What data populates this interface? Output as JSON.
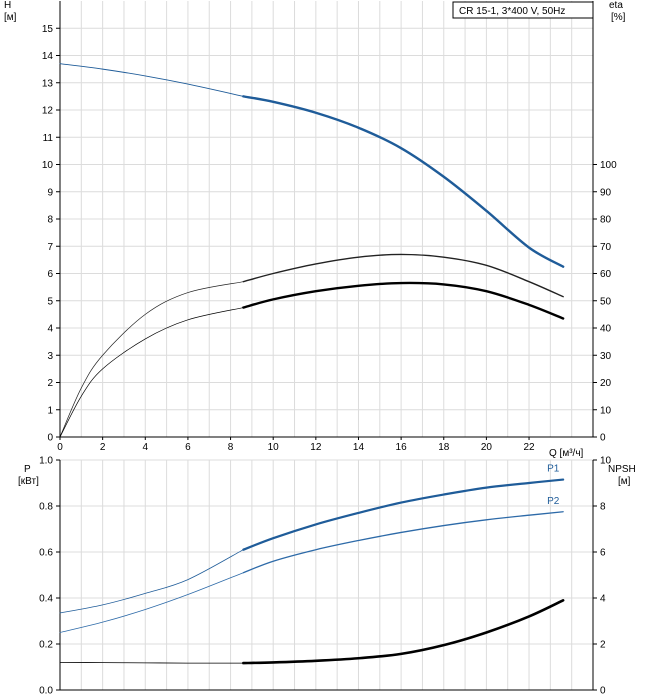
{
  "legend_box": {
    "text": "CR 15-1, 3*400 V, 50Hz"
  },
  "chart_data": [
    {
      "type": "line",
      "title": "",
      "left_axis": {
        "label": "H",
        "unit": "[м]",
        "ylim": [
          0,
          16
        ],
        "ticks": [
          "0",
          "1",
          "2",
          "3",
          "4",
          "5",
          "6",
          "7",
          "8",
          "9",
          "10",
          "11",
          "12",
          "13",
          "14",
          "15"
        ]
      },
      "right_axis": {
        "label": "eta",
        "unit": "[%]",
        "ylim": [
          0,
          160
        ],
        "ticks": [
          "0",
          "10",
          "20",
          "30",
          "40",
          "50",
          "60",
          "70",
          "80",
          "90",
          "100"
        ]
      },
      "x_axis": {
        "label": "Q [м³/ч]",
        "xlim": [
          0,
          25
        ],
        "ticks": [
          "0",
          "2",
          "4",
          "6",
          "8",
          "10",
          "12",
          "14",
          "16",
          "18",
          "20",
          "22"
        ]
      },
      "grid": true,
      "operating_range": [
        8.6,
        23.6
      ],
      "series": [
        {
          "axis": "left",
          "style": "head",
          "points": [
            [
              0,
              13.7
            ],
            [
              2,
              13.5
            ],
            [
              4,
              13.25
            ],
            [
              6,
              12.95
            ],
            [
              8.6,
              12.5
            ],
            [
              10,
              12.3
            ],
            [
              12,
              11.9
            ],
            [
              14,
              11.35
            ],
            [
              16,
              10.6
            ],
            [
              18,
              9.55
            ],
            [
              20,
              8.3
            ],
            [
              22,
              6.95
            ],
            [
              23.6,
              6.25
            ]
          ]
        },
        {
          "axis": "right",
          "style": "eta-thin",
          "points": [
            [
              0,
              0
            ],
            [
              1,
              18
            ],
            [
              2,
              30
            ],
            [
              4,
              45
            ],
            [
              6,
              53
            ],
            [
              8.6,
              57
            ],
            [
              10,
              60
            ],
            [
              12,
              63.5
            ],
            [
              14,
              66
            ],
            [
              16,
              67
            ],
            [
              18,
              66
            ],
            [
              20,
              63
            ],
            [
              22,
              57
            ],
            [
              23.6,
              51.5
            ]
          ]
        },
        {
          "axis": "right",
          "style": "eta-thick",
          "points": [
            [
              0,
              0
            ],
            [
              1,
              15
            ],
            [
              2,
              25
            ],
            [
              4,
              36
            ],
            [
              6,
              43
            ],
            [
              8.6,
              47.5
            ],
            [
              10,
              50.5
            ],
            [
              12,
              53.5
            ],
            [
              14,
              55.5
            ],
            [
              16,
              56.5
            ],
            [
              18,
              56
            ],
            [
              20,
              53.5
            ],
            [
              22,
              48.5
            ],
            [
              23.6,
              43.5
            ]
          ]
        }
      ]
    },
    {
      "type": "line",
      "title": "",
      "left_axis": {
        "label": "P",
        "unit": "[кВт]",
        "ylim": [
          0,
          1.0
        ],
        "ticks": [
          "0.0",
          "0.2",
          "0.4",
          "0.6",
          "0.8",
          "1.0"
        ]
      },
      "right_axis": {
        "label": "NPSH",
        "unit": "[м]",
        "ylim": [
          0,
          10
        ],
        "ticks": [
          "0",
          "2",
          "4",
          "6",
          "8",
          "10"
        ]
      },
      "x_axis": {
        "xlim": [
          0,
          25
        ]
      },
      "grid": true,
      "operating_range": [
        8.6,
        23.6
      ],
      "series": [
        {
          "axis": "left",
          "style": "p1",
          "name": "P1",
          "points": [
            [
              0,
              0.335
            ],
            [
              2,
              0.37
            ],
            [
              4,
              0.42
            ],
            [
              6,
              0.48
            ],
            [
              8.6,
              0.61
            ],
            [
              10,
              0.66
            ],
            [
              12,
              0.72
            ],
            [
              14,
              0.77
            ],
            [
              16,
              0.815
            ],
            [
              18,
              0.85
            ],
            [
              20,
              0.88
            ],
            [
              22,
              0.9
            ],
            [
              23.6,
              0.915
            ]
          ]
        },
        {
          "axis": "left",
          "style": "p2",
          "name": "P2",
          "points": [
            [
              0,
              0.25
            ],
            [
              2,
              0.295
            ],
            [
              4,
              0.35
            ],
            [
              6,
              0.415
            ],
            [
              8.6,
              0.51
            ],
            [
              10,
              0.56
            ],
            [
              12,
              0.61
            ],
            [
              14,
              0.65
            ],
            [
              16,
              0.685
            ],
            [
              18,
              0.715
            ],
            [
              20,
              0.74
            ],
            [
              22,
              0.76
            ],
            [
              23.6,
              0.775
            ]
          ]
        },
        {
          "axis": "right",
          "style": "npsh",
          "points": [
            [
              0,
              1.2
            ],
            [
              2,
              1.19
            ],
            [
              4,
              1.18
            ],
            [
              6,
              1.17
            ],
            [
              8.6,
              1.17
            ],
            [
              10,
              1.2
            ],
            [
              12,
              1.27
            ],
            [
              14,
              1.38
            ],
            [
              16,
              1.57
            ],
            [
              18,
              1.95
            ],
            [
              20,
              2.5
            ],
            [
              22,
              3.2
            ],
            [
              23.6,
              3.9
            ]
          ]
        }
      ]
    }
  ]
}
